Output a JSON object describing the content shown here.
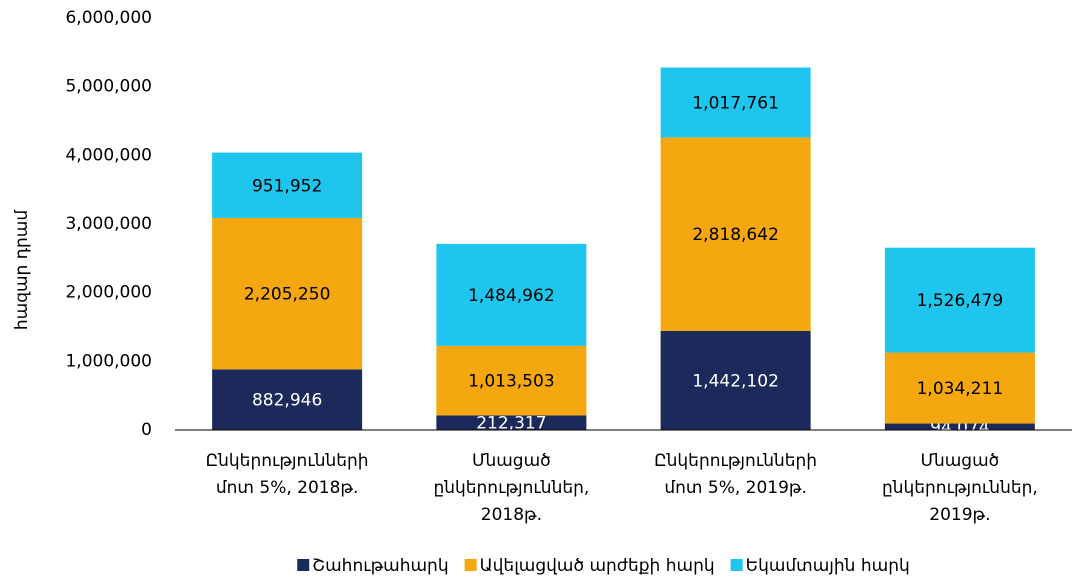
{
  "chart_data": {
    "type": "stacked_bar",
    "y_label": "հազար դրամ",
    "categories": [
      "Ընկերությունների մոտ 5%, 2018թ.",
      "Մնացած ընկերություններ, 2018թ.",
      "Ընկերությունների մոտ 5%, 2019թ.",
      "Մնացած ընկերություններ, 2019թ."
    ],
    "series": [
      {
        "name": "Շահութահարկ",
        "color": "#1b2a5a",
        "label_color": "#ffffff",
        "values": [
          882946,
          212317,
          1442102,
          94074
        ],
        "value_labels": [
          "882,946",
          "212,317",
          "1,442,102",
          "94,074"
        ]
      },
      {
        "name": "Ավելացված արժեքի հարկ",
        "color": "#f5a70f",
        "label_color": "#000000",
        "values": [
          2205250,
          1013503,
          2818642,
          1034211
        ],
        "value_labels": [
          "2,205,250",
          "1,013,503",
          "2,818,642",
          "1,034,211"
        ]
      },
      {
        "name": "Եկամտային հարկ",
        "color": "#1ec5ec",
        "label_color": "#000000",
        "values": [
          951952,
          1484962,
          1017761,
          1526479
        ],
        "value_labels": [
          "951,952",
          "1,484,962",
          "1,017,761",
          "1,526,479"
        ]
      }
    ],
    "ylim": [
      0,
      6000000
    ],
    "yticks": [
      0,
      {
        "value": 1000000,
        "label": "1,000,000"
      },
      {
        "value": 2000000,
        "label": "2,000,000"
      },
      {
        "value": 3000000,
        "label": "3,000,000"
      },
      {
        "value": 4000000,
        "label": "4,000,000"
      },
      {
        "value": 5000000,
        "label": "5,000,000"
      },
      {
        "value": 6000000,
        "label": "6,000,000"
      }
    ],
    "legend": "bottom"
  }
}
